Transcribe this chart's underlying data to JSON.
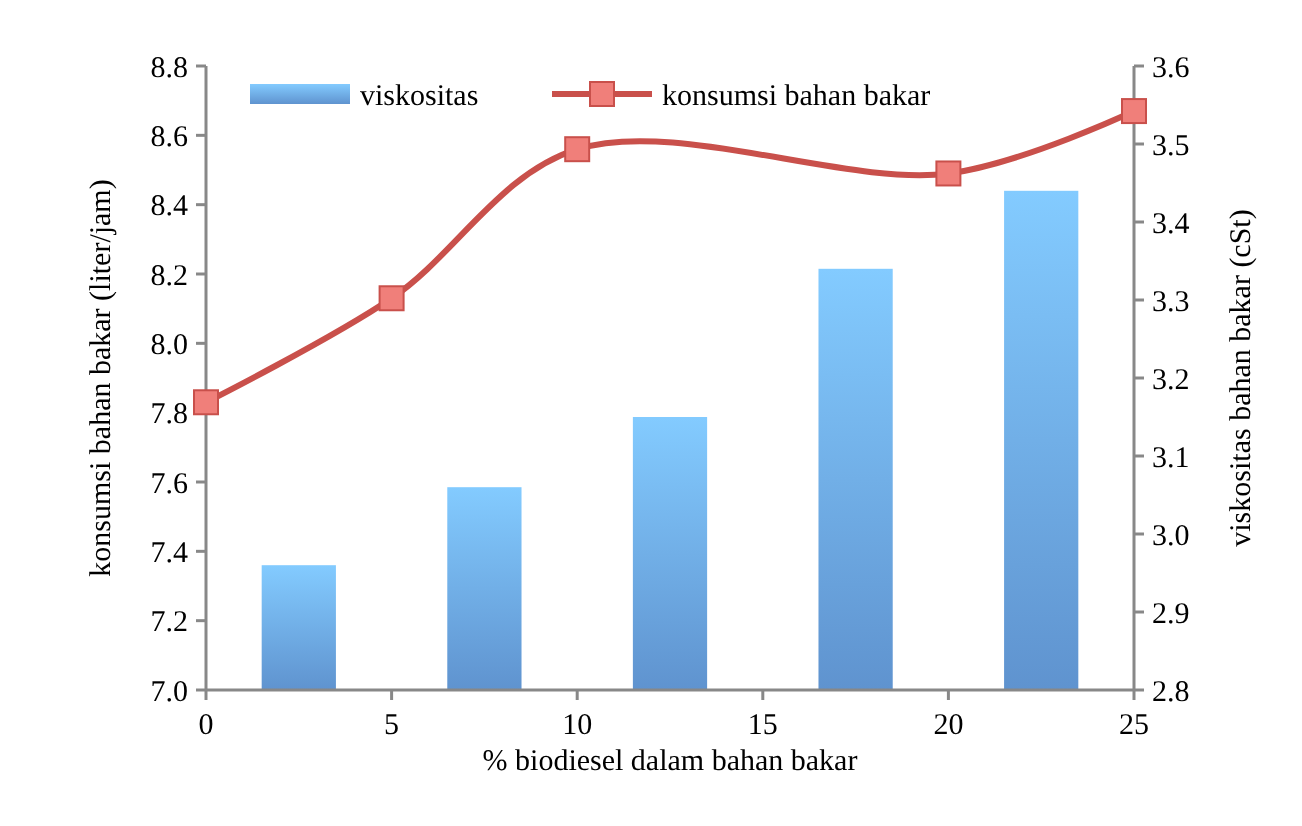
{
  "chart_data": {
    "type": "bar",
    "xlabel": "% biodiesel dalam bahan bakar",
    "ylabel": "konsumsi bahan bakar (liter/jam)",
    "y2label": "viskositas bahan bakar (cSt)",
    "xlim": [
      0,
      25
    ],
    "xticks": [
      0,
      5,
      10,
      15,
      20,
      25
    ],
    "ylim": [
      7.0,
      8.8
    ],
    "yticks": [
      {
        "value": 7.0,
        "label": "7.0"
      },
      {
        "value": 7.2,
        "label": "7.2"
      },
      {
        "value": 7.4,
        "label": "7.4"
      },
      {
        "value": 7.6,
        "label": "7.6"
      },
      {
        "value": 7.8,
        "label": "7.8"
      },
      {
        "value": 8.0,
        "label": "8.0"
      },
      {
        "value": 8.2,
        "label": "8.2"
      },
      {
        "value": 8.4,
        "label": "8.4"
      },
      {
        "value": 8.6,
        "label": "8.6"
      },
      {
        "value": 8.8,
        "label": "8.8"
      }
    ],
    "y2lim": [
      2.8,
      3.6
    ],
    "y2ticks": [
      2.8,
      2.9,
      {
        "value": 3.0,
        "label": "3.0"
      },
      3.1,
      3.2,
      3.3,
      3.4,
      3.5,
      3.6
    ],
    "series": [
      {
        "name": "viskositas",
        "axis": "y2",
        "color": "#6aa4e6",
        "x": [
          2.5,
          7.5,
          12.5,
          17.5,
          22.5
        ],
        "values": [
          2.96,
          3.06,
          3.15,
          3.34,
          3.44
        ]
      },
      {
        "name": "konsumsi bahan bakar",
        "type": "line",
        "color": "#c9504b",
        "x": [
          0,
          5,
          10,
          20,
          25
        ],
        "values": [
          7.83,
          8.13,
          8.56,
          8.49,
          8.67
        ],
        "marker": "square",
        "line_style": "solid"
      }
    ],
    "legend": "top",
    "grid": false
  }
}
